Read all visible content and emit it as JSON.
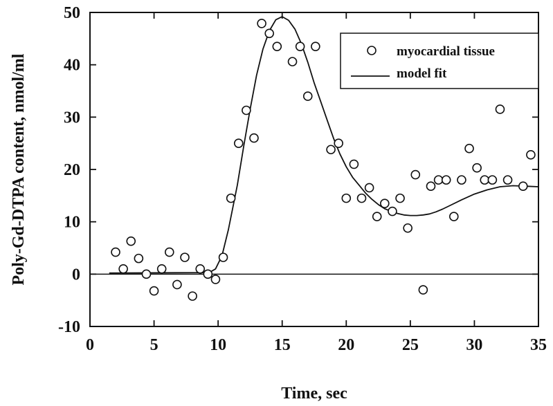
{
  "chart_data": {
    "type": "scatter",
    "xlabel": "Time, sec",
    "ylabel": "Poly-Gd-DTPA content, nmol/ml",
    "xlim": [
      0,
      35
    ],
    "ylim": [
      -10,
      50
    ],
    "x_ticks": [
      0,
      5,
      10,
      15,
      20,
      25,
      30,
      35
    ],
    "y_ticks": [
      -10,
      0,
      10,
      20,
      30,
      40,
      50
    ],
    "grid": false,
    "zero_line": true,
    "legend": {
      "position": "top-right",
      "entries": [
        {
          "label": "myocardial tissue",
          "marker": "open-circle"
        },
        {
          "label": "model fit",
          "marker": "line"
        }
      ]
    },
    "series": [
      {
        "name": "myocardial tissue",
        "kind": "points",
        "x": [
          2.0,
          2.6,
          3.2,
          3.8,
          4.4,
          5.0,
          5.6,
          6.2,
          6.8,
          7.4,
          8.0,
          8.6,
          9.2,
          9.8,
          10.4,
          11.0,
          11.6,
          12.2,
          12.8,
          13.4,
          14.0,
          14.6,
          15.8,
          16.4,
          17.0,
          17.6,
          18.8,
          19.4,
          20.0,
          20.6,
          21.2,
          21.8,
          22.4,
          23.0,
          23.6,
          24.2,
          24.8,
          25.4,
          26.0,
          26.6,
          27.2,
          27.8,
          28.4,
          29.0,
          29.6,
          30.2,
          30.8,
          31.4,
          32.0,
          32.6,
          33.8,
          34.4
        ],
        "y": [
          4.2,
          1.0,
          6.3,
          3.0,
          0.0,
          -3.2,
          1.0,
          4.2,
          -2.0,
          3.2,
          -4.2,
          1.0,
          0.0,
          -1.0,
          3.2,
          14.5,
          25.0,
          31.3,
          26.0,
          47.9,
          46.0,
          43.5,
          40.6,
          43.5,
          34.0,
          43.5,
          23.8,
          25.0,
          14.5,
          21.0,
          14.5,
          16.5,
          11.0,
          13.5,
          12.0,
          14.5,
          8.8,
          19.0,
          -3.0,
          16.8,
          18.0,
          18.0,
          11.0,
          18.0,
          24.0,
          20.3,
          18.0,
          18.0,
          31.5,
          18.0,
          16.8,
          22.8
        ]
      },
      {
        "name": "model fit",
        "kind": "line",
        "x": [
          1.5,
          9.3,
          9.8,
          10.3,
          10.8,
          11.5,
          12.0,
          12.5,
          13.0,
          13.5,
          14.0,
          14.5,
          15.0,
          15.5,
          16.0,
          16.5,
          17.0,
          17.5,
          18.0,
          18.5,
          19.0,
          19.5,
          20.0,
          20.5,
          21.0,
          21.5,
          22.0,
          22.5,
          23.0,
          23.5,
          24.0,
          24.5,
          25.0,
          25.5,
          26.0,
          26.5,
          27.0,
          27.5,
          28.0,
          29.0,
          30.0,
          31.0,
          32.0,
          33.0,
          34.0,
          35.0
        ],
        "y": [
          0.2,
          0.3,
          1.0,
          3.5,
          8.5,
          17.0,
          24.5,
          31.5,
          38.0,
          43.0,
          46.5,
          48.6,
          49.2,
          48.5,
          46.8,
          44.0,
          40.5,
          36.5,
          33.0,
          29.5,
          26.0,
          23.0,
          20.5,
          18.5,
          17.0,
          15.5,
          14.3,
          13.3,
          12.5,
          12.0,
          11.6,
          11.3,
          11.2,
          11.2,
          11.3,
          11.5,
          11.9,
          12.4,
          13.0,
          14.2,
          15.3,
          16.1,
          16.7,
          16.9,
          16.8,
          16.7
        ]
      }
    ]
  }
}
